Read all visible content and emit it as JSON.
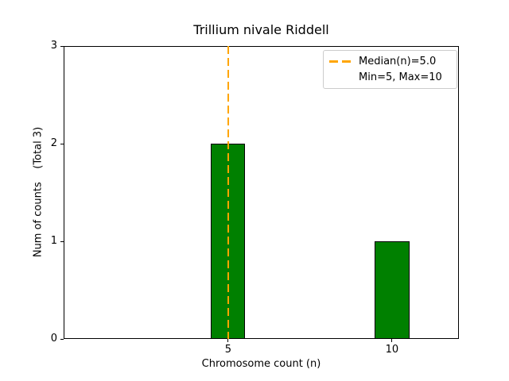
{
  "chart_data": {
    "type": "bar",
    "title": "Trillium nivale Riddell",
    "xlabel": "Chromosome count (n)",
    "ylabel": "Num of counts    (Total 3)",
    "x": [
      5,
      10
    ],
    "values": [
      2,
      1
    ],
    "bar_width": 1.05,
    "bar_color": "#008000",
    "bar_edge_color": "#000000",
    "xlim": [
      -0.02,
      12.04
    ],
    "ylim": [
      0,
      3
    ],
    "xticks": [
      "5",
      "10"
    ],
    "xtick_values": [
      5,
      10
    ],
    "yticks": [
      "0",
      "1",
      "2",
      "3"
    ],
    "ytick_values": [
      0,
      1,
      2,
      3
    ],
    "grid": false,
    "median_line": {
      "x": 5.0,
      "color": "#ffa500",
      "style": "dashed"
    },
    "legend": {
      "position": "upper right",
      "entries": [
        {
          "label": "Median(n)=5.0",
          "handle": "dashed-line",
          "color": "#ffa500"
        },
        {
          "label": "Min=5, Max=10",
          "handle": "none",
          "color": ""
        }
      ]
    }
  }
}
